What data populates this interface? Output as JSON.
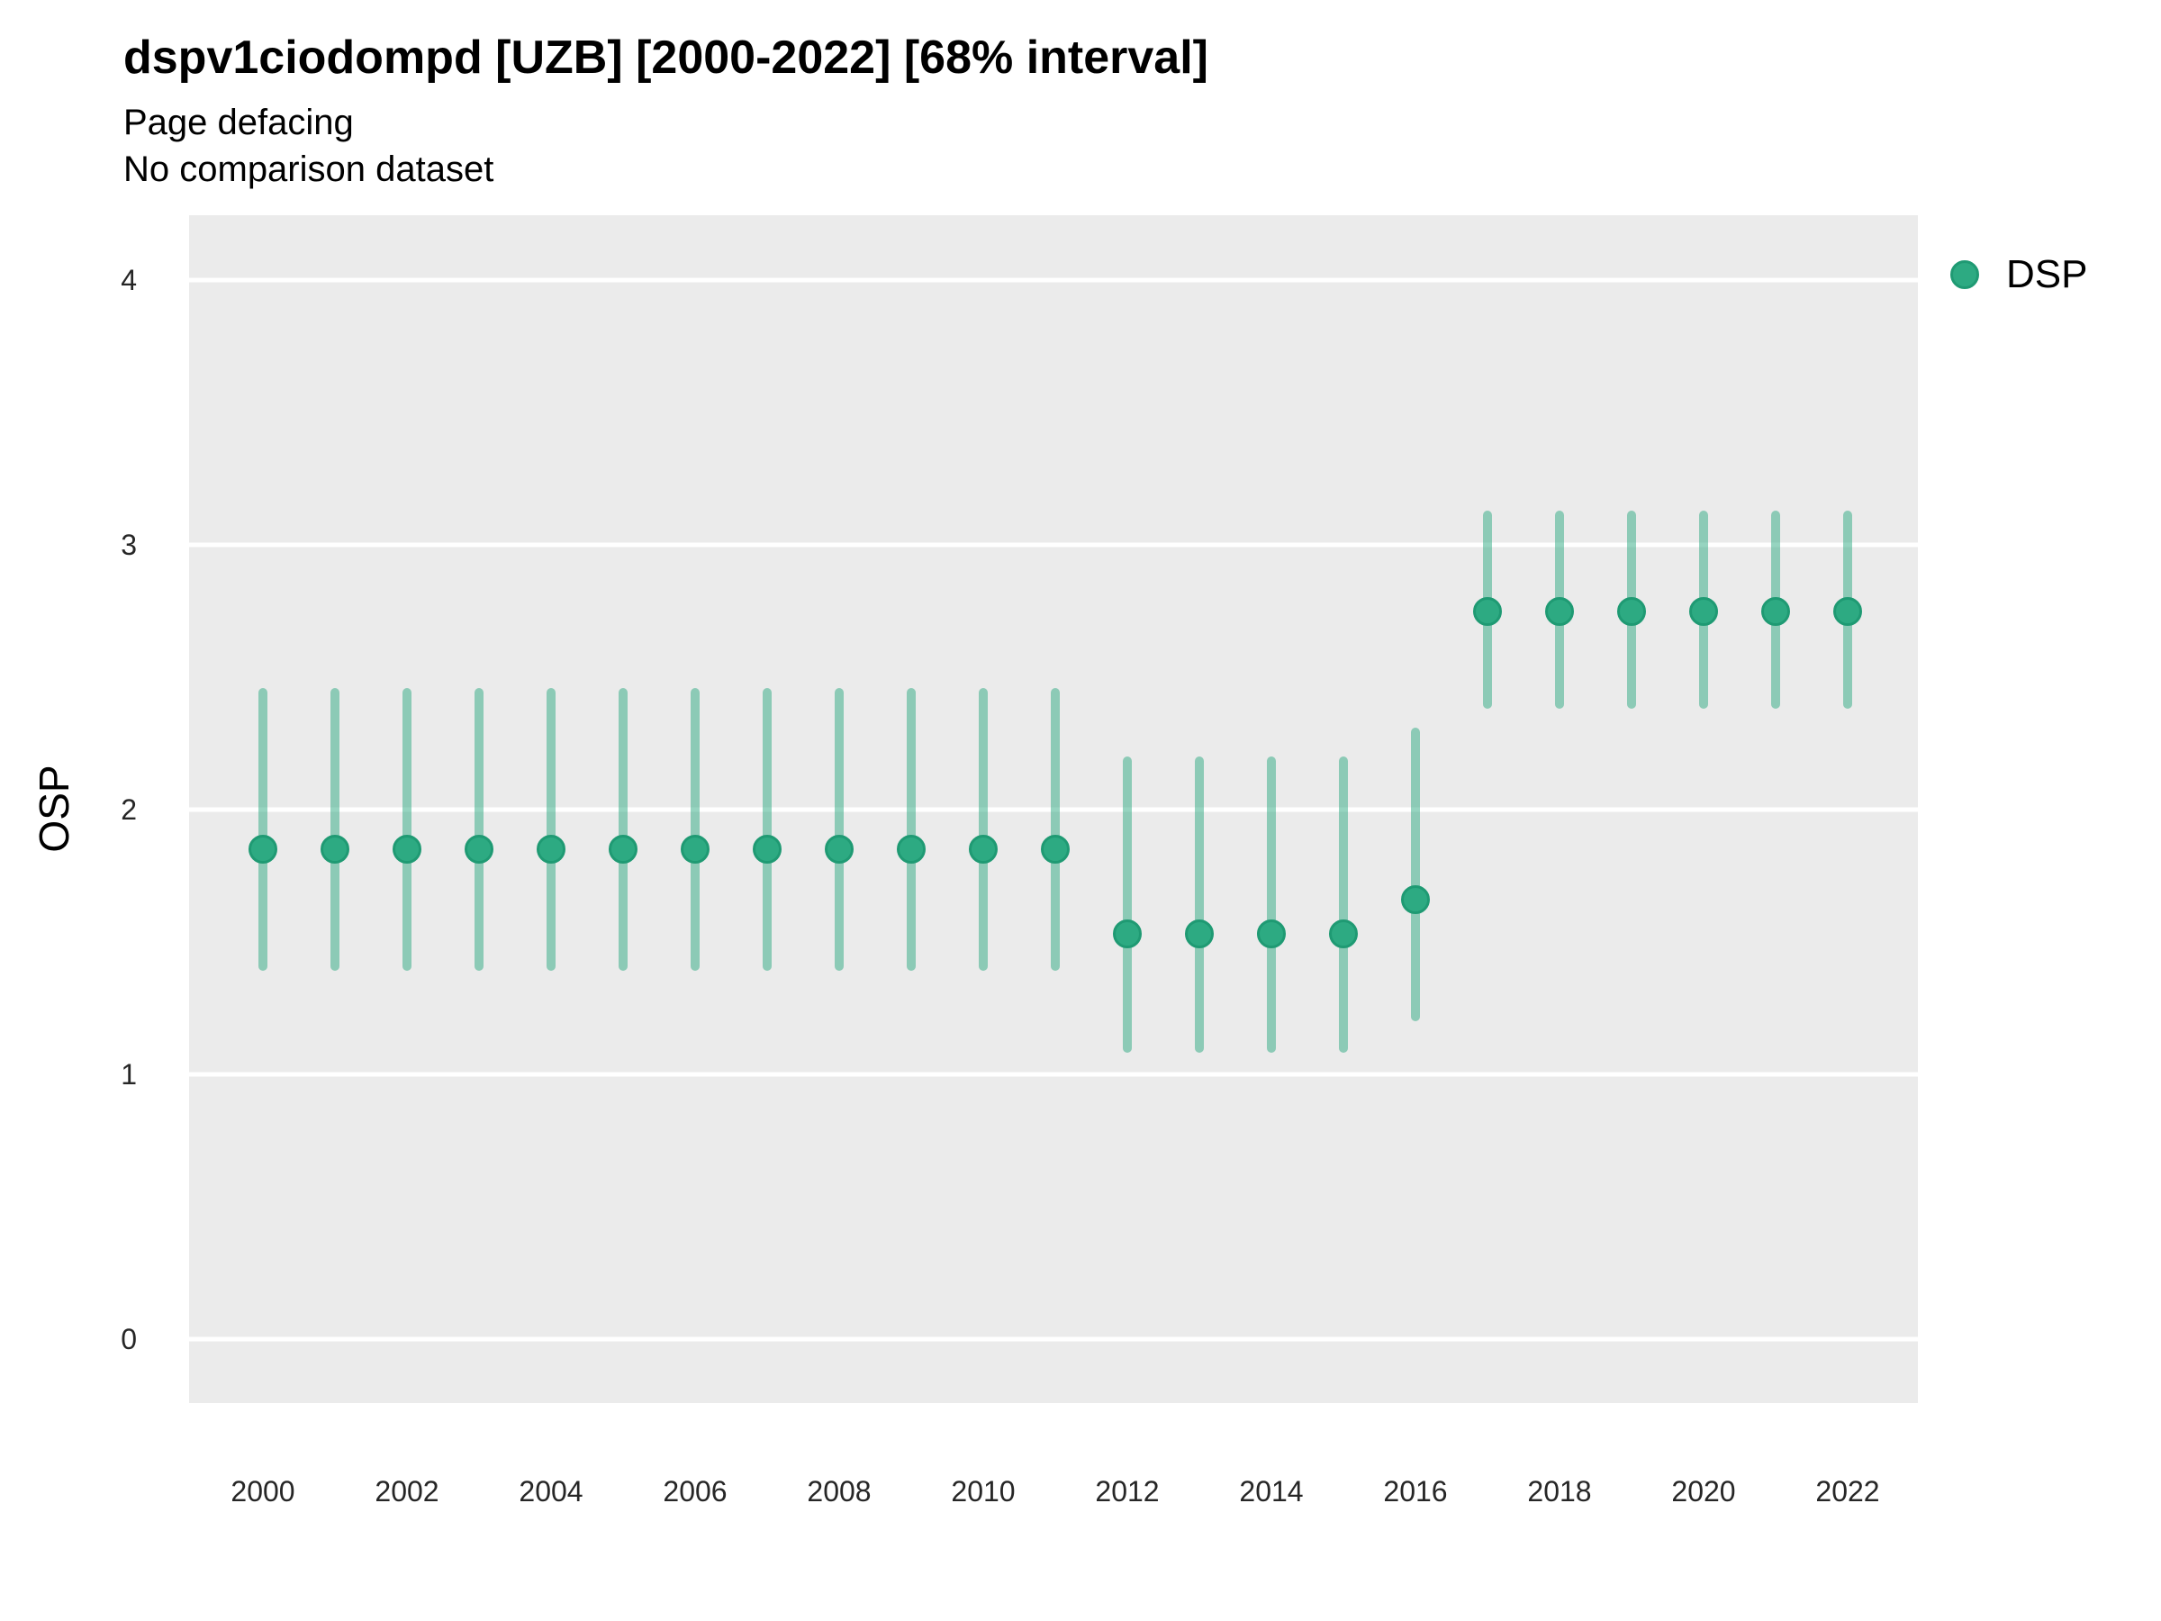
{
  "title": "dspv1ciodompd [UZB] [2000-2022] [68% interval]",
  "subtitle1": "Page defacing",
  "subtitle2": "No comparison dataset",
  "y_axis": {
    "label": "OSP"
  },
  "x_axis": {
    "label": ""
  },
  "legend": {
    "items": [
      {
        "label": "DSP",
        "marker": "circle-icon"
      }
    ]
  },
  "colors": {
    "point": "#2daa82",
    "point_border": "#1f9a73",
    "interval": "rgba(45,170,130,0.5)",
    "panel_bg": "#ebebeb",
    "gridline": "#ffffff",
    "tick_text": "#262626",
    "text": "#000000"
  },
  "chart_data": {
    "type": "scatter",
    "subtype": "pointrange",
    "title": "dspv1ciodompd [UZB] [2000-2022] [68% interval]",
    "subtitle": [
      "Page defacing",
      "No comparison dataset"
    ],
    "xlabel": "",
    "ylabel": "OSP",
    "xlim": [
      1999,
      2023
    ],
    "ylim": [
      -0.25,
      4.25
    ],
    "x_ticks": [
      2000,
      2002,
      2004,
      2006,
      2008,
      2010,
      2012,
      2014,
      2016,
      2018,
      2020,
      2022
    ],
    "y_ticks": [
      0,
      1,
      2,
      3,
      4
    ],
    "grid": "major-horizontal-only",
    "legend_position": "right-top",
    "interval_label": "68% interval",
    "series": [
      {
        "name": "DSP",
        "x": [
          2000,
          2001,
          2002,
          2003,
          2004,
          2005,
          2006,
          2007,
          2008,
          2009,
          2010,
          2011,
          2012,
          2013,
          2014,
          2015,
          2016,
          2017,
          2018,
          2019,
          2020,
          2021,
          2022
        ],
        "y": [
          1.85,
          1.85,
          1.85,
          1.85,
          1.85,
          1.85,
          1.85,
          1.85,
          1.85,
          1.85,
          1.85,
          1.85,
          1.53,
          1.53,
          1.53,
          1.53,
          1.66,
          2.75,
          2.75,
          2.75,
          2.75,
          2.75,
          2.75
        ],
        "y_lo": [
          1.39,
          1.39,
          1.39,
          1.39,
          1.39,
          1.39,
          1.39,
          1.39,
          1.39,
          1.39,
          1.39,
          1.39,
          1.08,
          1.08,
          1.08,
          1.08,
          1.2,
          2.38,
          2.38,
          2.38,
          2.38,
          2.38,
          2.38
        ],
        "y_hi": [
          2.46,
          2.46,
          2.46,
          2.46,
          2.46,
          2.46,
          2.46,
          2.46,
          2.46,
          2.46,
          2.46,
          2.46,
          2.2,
          2.2,
          2.2,
          2.2,
          2.31,
          3.13,
          3.13,
          3.13,
          3.13,
          3.13,
          3.13
        ]
      }
    ]
  }
}
